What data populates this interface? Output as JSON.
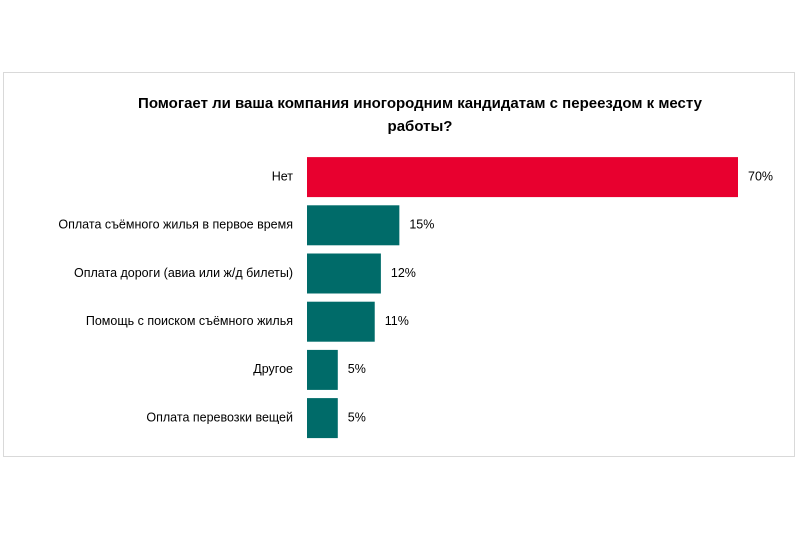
{
  "chart_data": {
    "type": "bar",
    "orientation": "horizontal",
    "title": "Помогает ли ваша компания иногородним кандидатам с переездом к месту работы?",
    "categories": [
      "Нет",
      "Оплата съёмного жилья в первое время",
      "Оплата дороги (авиа или ж/д билеты)",
      "Помощь с поиском съёмного жилья",
      "Другое",
      "Оплата перевозки вещей"
    ],
    "values": [
      70,
      15,
      12,
      11,
      5,
      5
    ],
    "value_labels": [
      "70%",
      "15%",
      "12%",
      "11%",
      "5%",
      "5%"
    ],
    "colors": [
      "#e8002f",
      "#006b69",
      "#006b69",
      "#006b69",
      "#006b69",
      "#006b69"
    ]
  }
}
